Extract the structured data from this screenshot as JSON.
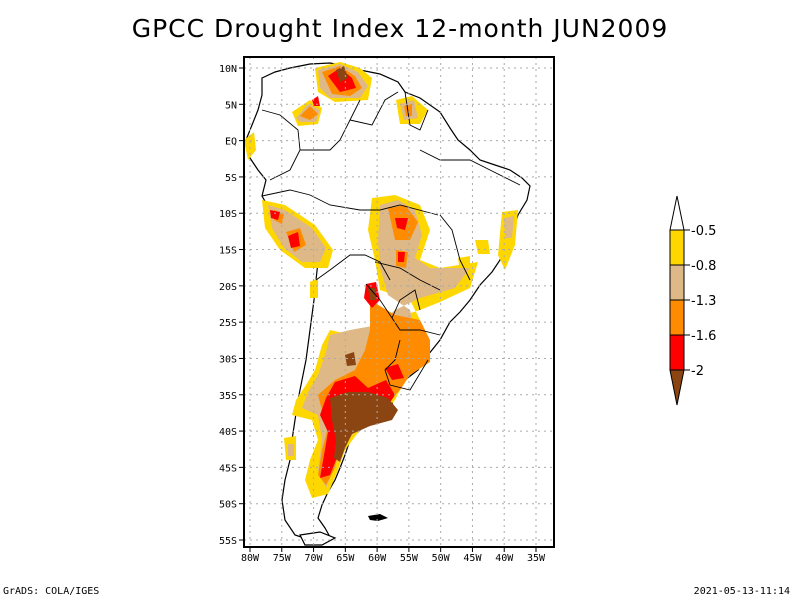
{
  "title": "GPCC Drought Index 12-month JUN2009",
  "map": {
    "lat_labels": [
      "10N",
      "5N",
      "EQ",
      "5S",
      "10S",
      "15S",
      "20S",
      "25S",
      "30S",
      "35S",
      "40S",
      "45S",
      "50S",
      "55S"
    ],
    "lon_labels": [
      "80W",
      "75W",
      "70W",
      "65W",
      "60W",
      "55W",
      "50W",
      "45W",
      "40W",
      "35W"
    ],
    "lat_values": [
      10,
      5,
      0,
      -5,
      -10,
      -15,
      -20,
      -25,
      -30,
      -35,
      -40,
      -45,
      -50,
      -55
    ],
    "lon_values": [
      -80,
      -75,
      -70,
      -65,
      -60,
      -55,
      -50,
      -45,
      -40,
      -35
    ],
    "extent": {
      "lon_min": -81,
      "lon_max": -33,
      "lat_min": -56,
      "lat_max": 11.5
    },
    "region": "South America"
  },
  "colorbar": {
    "labels": [
      "-0.5",
      "-0.8",
      "-1.3",
      "-1.6",
      "-2"
    ],
    "bins": [
      {
        "range": "> -0.5",
        "color": "#ffffff"
      },
      {
        "range": "-0.8 to -0.5",
        "color": "#ffd700"
      },
      {
        "range": "-1.3 to -0.8",
        "color": "#deb887"
      },
      {
        "range": "-1.6 to -1.3",
        "color": "#ff8c00"
      },
      {
        "range": "-2 to -1.6",
        "color": "#ff0000"
      },
      {
        "range": "< -2",
        "color": "#8b4513"
      }
    ]
  },
  "footer": {
    "left": "GrADS: COLA/IGES",
    "right": "2021-05-13-11:14"
  }
}
